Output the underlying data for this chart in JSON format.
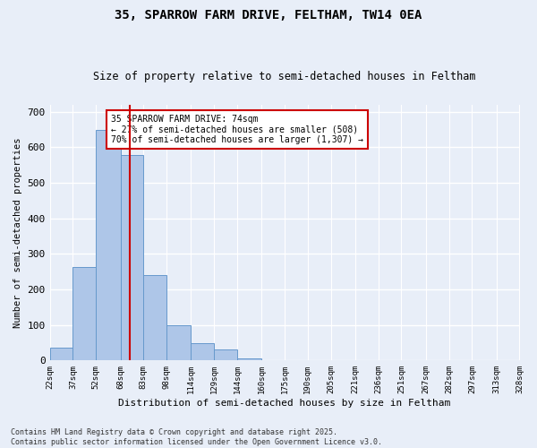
{
  "title": "35, SPARROW FARM DRIVE, FELTHAM, TW14 0EA",
  "subtitle": "Size of property relative to semi-detached houses in Feltham",
  "xlabel": "Distribution of semi-detached houses by size in Feltham",
  "ylabel": "Number of semi-detached properties",
  "footnote1": "Contains HM Land Registry data © Crown copyright and database right 2025.",
  "footnote2": "Contains public sector information licensed under the Open Government Licence v3.0.",
  "annotation_title": "35 SPARROW FARM DRIVE: 74sqm",
  "annotation_line1": "← 27% of semi-detached houses are smaller (508)",
  "annotation_line2": "70% of semi-detached houses are larger (1,307) →",
  "property_size": 74,
  "bar_color": "#aec6e8",
  "bar_edge_color": "#6699cc",
  "vline_color": "#cc0000",
  "annotation_box_color": "#cc0000",
  "bg_color": "#e8eef8",
  "grid_color": "#ffffff",
  "bins": [
    22,
    37,
    52,
    68,
    83,
    98,
    114,
    129,
    144,
    160,
    175,
    190,
    205,
    221,
    236,
    251,
    267,
    282,
    297,
    313,
    328
  ],
  "bin_labels": [
    "22sqm",
    "37sqm",
    "52sqm",
    "68sqm",
    "83sqm",
    "98sqm",
    "114sqm",
    "129sqm",
    "144sqm",
    "160sqm",
    "175sqm",
    "190sqm",
    "205sqm",
    "221sqm",
    "236sqm",
    "251sqm",
    "267sqm",
    "282sqm",
    "297sqm",
    "313sqm",
    "328sqm"
  ],
  "counts": [
    35,
    262,
    648,
    578,
    240,
    100,
    50,
    30,
    5,
    0,
    0,
    0,
    0,
    0,
    0,
    0,
    0,
    0,
    0,
    0
  ],
  "ylim": [
    0,
    720
  ],
  "yticks": [
    0,
    100,
    200,
    300,
    400,
    500,
    600,
    700
  ]
}
